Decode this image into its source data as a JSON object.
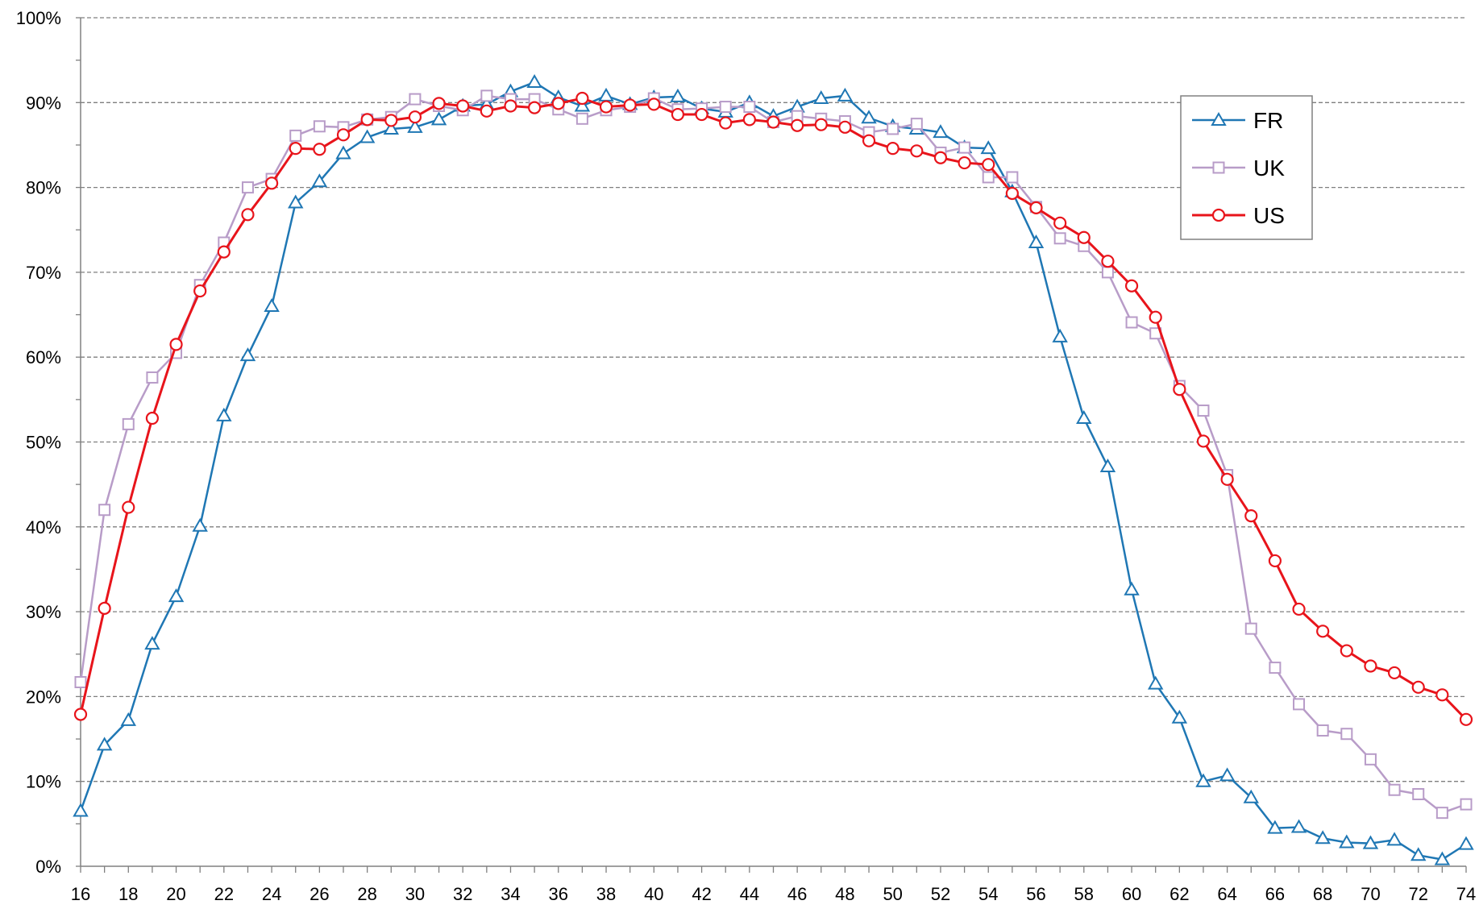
{
  "chart_data": {
    "type": "line",
    "title": "",
    "xlabel": "",
    "ylabel": "",
    "x": [
      16,
      17,
      18,
      19,
      20,
      21,
      22,
      23,
      24,
      25,
      26,
      27,
      28,
      29,
      30,
      31,
      32,
      33,
      34,
      35,
      36,
      37,
      38,
      39,
      40,
      41,
      42,
      43,
      44,
      45,
      46,
      47,
      48,
      49,
      50,
      51,
      52,
      53,
      54,
      55,
      56,
      57,
      58,
      59,
      60,
      61,
      62,
      63,
      64,
      65,
      66,
      67,
      68,
      69,
      70,
      71,
      72,
      73,
      74
    ],
    "x_ticks": [
      "16",
      "18",
      "20",
      "22",
      "24",
      "26",
      "28",
      "30",
      "32",
      "34",
      "36",
      "38",
      "40",
      "42",
      "44",
      "46",
      "48",
      "50",
      "52",
      "54",
      "56",
      "58",
      "60",
      "62",
      "64",
      "66",
      "68",
      "70",
      "72",
      "74"
    ],
    "y_ticks": [
      "0%",
      "10%",
      "20%",
      "30%",
      "40%",
      "50%",
      "60%",
      "70%",
      "80%",
      "90%",
      "100%"
    ],
    "xlim": [
      16,
      74
    ],
    "ylim": [
      0,
      100
    ],
    "grid": "horizontal dashed",
    "legend_position": "right",
    "series": [
      {
        "name": "FR",
        "color": "#1f77b4",
        "marker": "triangle",
        "values": [
          6.5,
          14.3,
          17.2,
          26.2,
          31.8,
          40.1,
          53.1,
          60.2,
          66.0,
          78.2,
          80.7,
          84.0,
          85.9,
          86.9,
          87.1,
          88.0,
          89.6,
          89.8,
          91.3,
          92.4,
          90.6,
          89.6,
          90.8,
          89.8,
          90.6,
          90.7,
          89.3,
          88.9,
          90.0,
          88.4,
          89.5,
          90.5,
          90.8,
          88.2,
          87.2,
          86.9,
          86.5,
          84.7,
          84.6,
          79.5,
          73.5,
          62.4,
          52.8,
          47.1,
          32.6,
          21.5,
          17.5,
          10.0,
          10.7,
          8.1,
          4.5,
          4.6,
          3.3,
          2.8,
          2.7,
          3.1,
          1.3,
          0.8,
          2.6
        ]
      },
      {
        "name": "UK",
        "color": "#b89cc8",
        "marker": "square",
        "values": [
          21.7,
          42.0,
          52.1,
          57.6,
          60.5,
          68.5,
          73.5,
          80.0,
          81.0,
          86.1,
          87.2,
          87.1,
          88.0,
          88.3,
          90.4,
          89.6,
          89.1,
          90.8,
          90.4,
          90.4,
          89.2,
          88.1,
          89.1,
          89.5,
          90.5,
          89.2,
          89.3,
          89.5,
          89.5,
          87.7,
          88.4,
          88.1,
          87.8,
          86.5,
          86.9,
          87.5,
          84.1,
          84.7,
          81.2,
          81.2,
          77.7,
          74.0,
          73.1,
          70.0,
          64.1,
          62.8,
          56.6,
          53.7,
          46.1,
          28.0,
          23.4,
          19.1,
          16.0,
          15.6,
          12.6,
          9.0,
          8.5,
          6.3,
          7.3
        ]
      },
      {
        "name": "US",
        "color": "#e8141b",
        "marker": "circle",
        "values": [
          17.9,
          30.4,
          42.3,
          52.8,
          61.5,
          67.8,
          72.4,
          76.8,
          80.5,
          84.6,
          84.5,
          86.2,
          88.0,
          87.9,
          88.3,
          89.9,
          89.6,
          89.0,
          89.6,
          89.4,
          89.9,
          90.5,
          89.5,
          89.7,
          89.8,
          88.6,
          88.6,
          87.6,
          88.0,
          87.7,
          87.3,
          87.4,
          87.1,
          85.5,
          84.6,
          84.3,
          83.5,
          82.9,
          82.7,
          79.3,
          77.6,
          75.8,
          74.1,
          71.3,
          68.4,
          64.7,
          56.2,
          50.1,
          45.6,
          41.3,
          36.0,
          30.3,
          27.7,
          25.4,
          23.6,
          22.8,
          21.1,
          20.2,
          17.3
        ]
      }
    ]
  }
}
